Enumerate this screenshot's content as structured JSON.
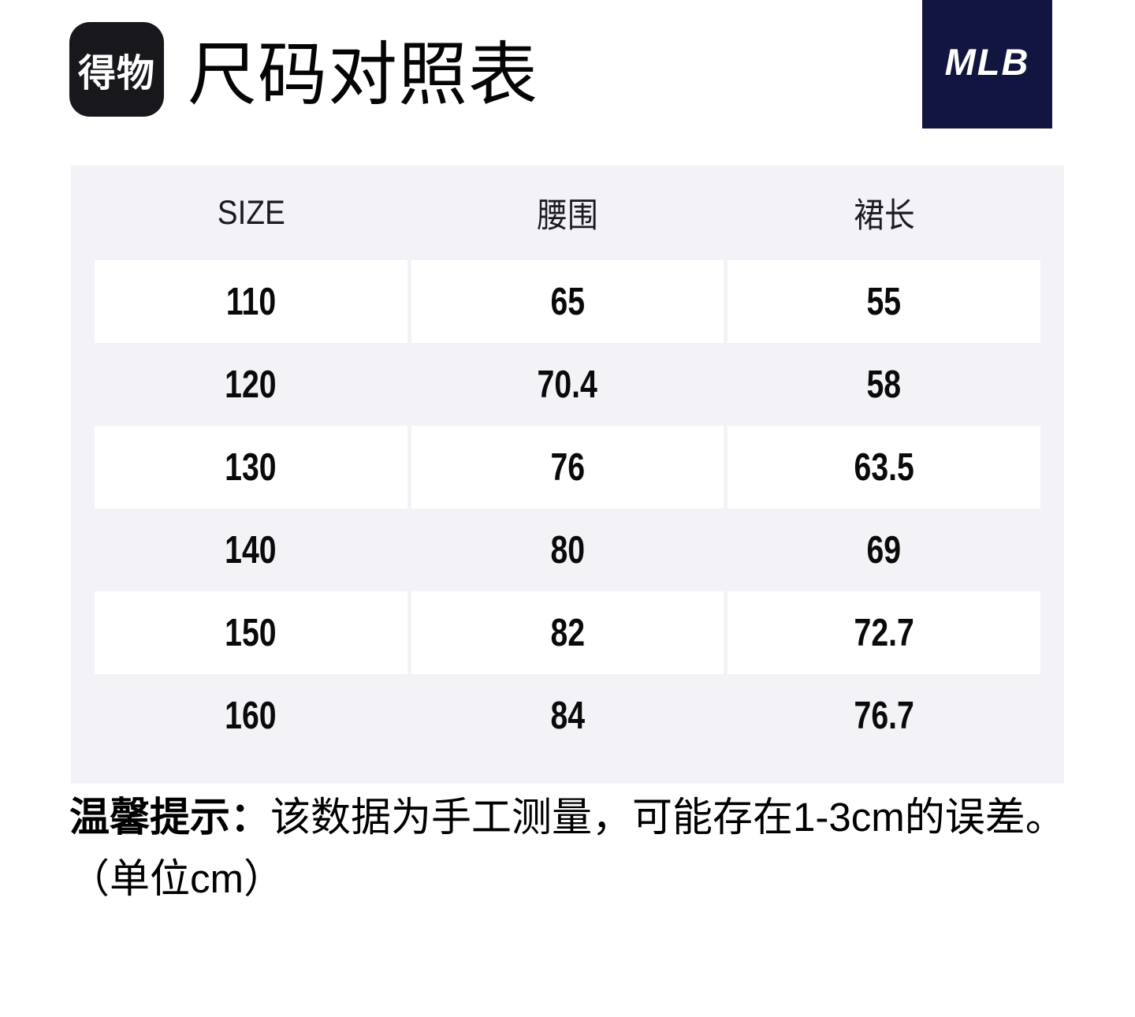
{
  "header": {
    "logo_text": "得物",
    "title": "尺码对照表",
    "brand": "MLB"
  },
  "table": {
    "columns": [
      "SIZE",
      "腰围",
      "裙长"
    ],
    "rows": [
      [
        "110",
        "65",
        "55"
      ],
      [
        "120",
        "70.4",
        "58"
      ],
      [
        "130",
        "76",
        "63.5"
      ],
      [
        "140",
        "80",
        "69"
      ],
      [
        "150",
        "82",
        "72.7"
      ],
      [
        "160",
        "84",
        "76.7"
      ]
    ]
  },
  "footer": {
    "notice_label": "温馨提示：",
    "notice_text": "该数据为手工测量，可能存在1-3cm的误差。",
    "unit_note": "（单位cm）"
  },
  "colors": {
    "panel_bg": "#F3F3F7",
    "cell_bg": "#FFFFFF",
    "dewu_logo_bg": "#17171C",
    "mlb_bg": "#111540",
    "text": "#0A0A0A"
  }
}
